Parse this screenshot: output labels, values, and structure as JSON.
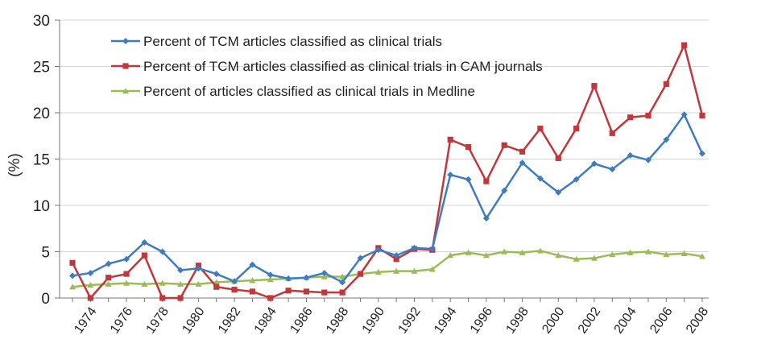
{
  "chart_data": {
    "type": "line",
    "title": "",
    "xlabel": "",
    "ylabel": "(%)",
    "ylim": [
      0,
      30
    ],
    "yticks": [
      "0",
      "5",
      "10",
      "15",
      "20",
      "25",
      "30"
    ],
    "xtick_labels": [
      "1974",
      "1976",
      "1978",
      "1980",
      "1982",
      "1984",
      "1986",
      "1988",
      "1990",
      "1992",
      "1994",
      "1996",
      "1998",
      "2000",
      "2002",
      "2004",
      "2006",
      "2008"
    ],
    "x": [
      1973,
      1974,
      1975,
      1976,
      1977,
      1978,
      1979,
      1980,
      1981,
      1982,
      1983,
      1984,
      1985,
      1986,
      1987,
      1988,
      1989,
      1990,
      1991,
      1992,
      1993,
      1994,
      1995,
      1996,
      1997,
      1998,
      1999,
      2000,
      2001,
      2002,
      2003,
      2004,
      2005,
      2006,
      2007,
      2008
    ],
    "grid": "horizontal",
    "legend_position": "top-left",
    "series": [
      {
        "name": "Percent of TCM articles classified as clinical trials",
        "color": "#3f7cbf",
        "marker": "diamond",
        "values": [
          2.4,
          2.7,
          3.7,
          4.2,
          6.0,
          5.0,
          3.0,
          3.2,
          2.6,
          1.8,
          3.6,
          2.5,
          2.1,
          2.2,
          2.7,
          1.7,
          4.3,
          5.2,
          4.6,
          5.4,
          5.3,
          13.3,
          12.8,
          8.6,
          11.6,
          14.6,
          12.9,
          11.4,
          12.8,
          14.5,
          13.9,
          15.4,
          14.9,
          17.1,
          19.8,
          15.6
        ]
      },
      {
        "name": "Percent of TCM articles classified as clinical trials in CAM journals",
        "color": "#c0383b",
        "marker": "square",
        "values": [
          3.8,
          0.0,
          2.2,
          2.6,
          4.6,
          0.0,
          0.0,
          3.5,
          1.2,
          0.9,
          0.7,
          0.0,
          0.8,
          0.7,
          0.6,
          0.6,
          2.6,
          5.4,
          4.2,
          5.3,
          5.2,
          17.1,
          16.3,
          12.6,
          16.5,
          15.8,
          18.3,
          15.1,
          18.3,
          22.9,
          17.8,
          19.5,
          19.7,
          23.1,
          27.3,
          19.7
        ]
      },
      {
        "name": "Percent of articles classified as clinical trials in Medline",
        "color": "#9bbb59",
        "marker": "triangle",
        "values": [
          1.2,
          1.4,
          1.5,
          1.6,
          1.5,
          1.6,
          1.5,
          1.5,
          1.7,
          1.8,
          1.9,
          2.0,
          2.1,
          2.2,
          2.3,
          2.3,
          2.6,
          2.8,
          2.9,
          2.9,
          3.1,
          4.6,
          4.9,
          4.6,
          5.0,
          4.9,
          5.1,
          4.6,
          4.2,
          4.3,
          4.7,
          4.9,
          5.0,
          4.7,
          4.8,
          4.5
        ]
      }
    ]
  }
}
